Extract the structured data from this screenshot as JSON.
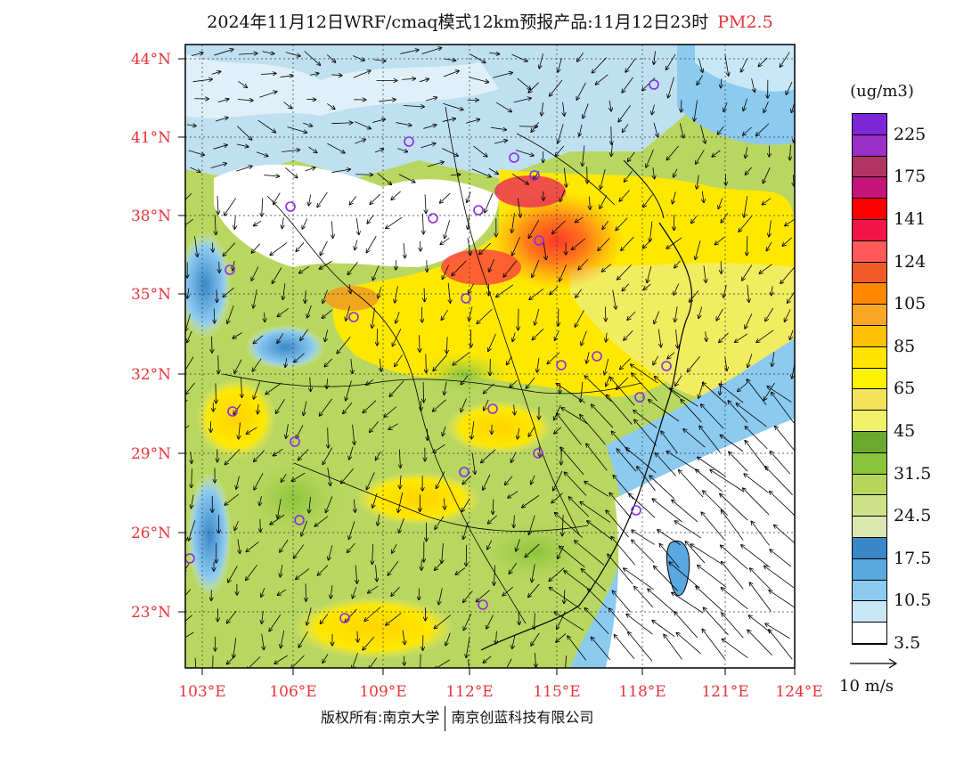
{
  "title": {
    "main": "2024年11月12日WRF/cmaq模式12km预报产品:11月12日23时",
    "pollutant": "PM2.5",
    "pollutant_color": "#e8343c"
  },
  "map": {
    "lat_labels": [
      "44°N",
      "41°N",
      "38°N",
      "35°N",
      "32°N",
      "29°N",
      "26°N",
      "23°N"
    ],
    "lon_labels": [
      "103°E",
      "106°E",
      "109°E",
      "112°E",
      "115°E",
      "118°E",
      "121°E",
      "124°E"
    ],
    "station_marker_color": "#8a2be2"
  },
  "legend": {
    "unit": "(ug/m3)",
    "labels": [
      "225",
      "175",
      "141",
      "124",
      "105",
      "85",
      "65",
      "45",
      "31.5",
      "24.5",
      "17.5",
      "10.5",
      "3.5"
    ],
    "colors": [
      "#7c28d8",
      "#9a2fc7",
      "#b0345f",
      "#c4147a",
      "#ff0000",
      "#f21545",
      "#ff5a5a",
      "#ef5a28",
      "#ff8800",
      "#f9a825",
      "#ffc107",
      "#ffe500",
      "#fff200",
      "#f2e35a",
      "#f2f26a",
      "#6aa830",
      "#8ac43a",
      "#b5d65a",
      "#cfe28a",
      "#dde8b0",
      "#3a88c8",
      "#5aa8e0",
      "#8ccaf0",
      "#c8e8f8",
      "#ffffff"
    ],
    "wind_reference": "10 m/s"
  },
  "footer": {
    "copyright_left": "版权所有:南京大学",
    "copyright_right": "南京创蓝科技有限公司"
  }
}
